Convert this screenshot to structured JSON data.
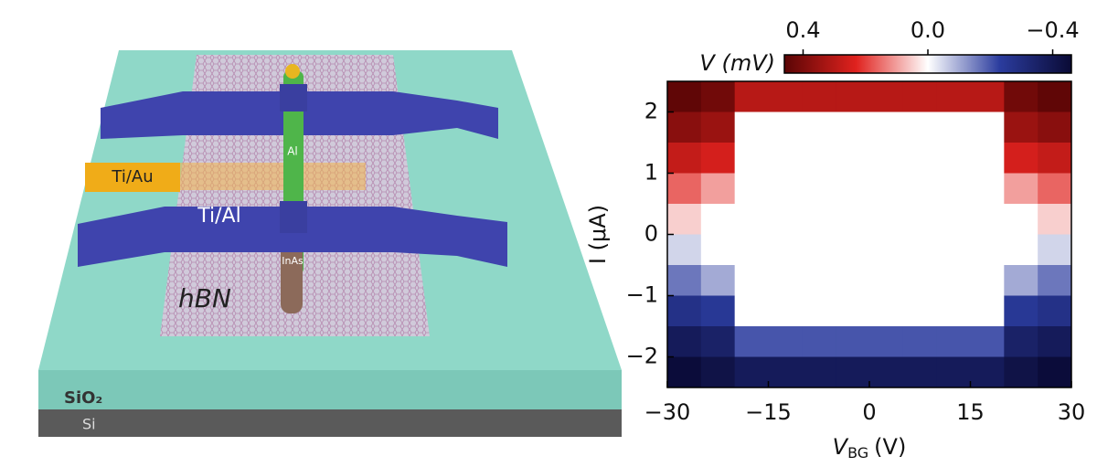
{
  "schematic": {
    "labels": {
      "ti_au": "Ti/Au",
      "ti_al": "Ti/Al",
      "al": "Al",
      "inas": "InAs",
      "hbn": "hBN",
      "sio2": "SiO₂",
      "si": "Si"
    }
  },
  "chart_data": {
    "type": "heatmap",
    "x_label": {
      "symbol": "V",
      "subscript": "BG",
      "unit": "(V)"
    },
    "y_label": "I (μA)",
    "colorbar_label": "V (mV)",
    "x_edges": [
      -30,
      -25,
      -20,
      -15,
      -10,
      -5,
      0,
      5,
      10,
      15,
      20,
      25,
      30
    ],
    "y_edges": [
      2.5,
      2,
      1.5,
      1,
      0.5,
      0,
      -0.5,
      -1,
      -1.5,
      -2,
      -2.5
    ],
    "values": [
      [
        0.45,
        0.42,
        0.3,
        0.3,
        0.3,
        0.3,
        0.3,
        0.3,
        0.3,
        0.3,
        0.42,
        0.45
      ],
      [
        0.38,
        0.35,
        0,
        0,
        0,
        0,
        0,
        0,
        0,
        0,
        0.35,
        0.38
      ],
      [
        0.28,
        0.25,
        0,
        0,
        0,
        0,
        0,
        0,
        0,
        0,
        0.25,
        0.28
      ],
      [
        0.16,
        0.1,
        0,
        0,
        0,
        0,
        0,
        0,
        0,
        0,
        0.1,
        0.16
      ],
      [
        0.05,
        0,
        0,
        0,
        0,
        0,
        0,
        0,
        0,
        0,
        0,
        0.05
      ],
      [
        -0.05,
        0,
        0,
        0,
        0,
        0,
        0,
        0,
        0,
        0,
        0,
        -0.05
      ],
      [
        -0.16,
        -0.1,
        0,
        0,
        0,
        0,
        0,
        0,
        0,
        0,
        -0.1,
        -0.16
      ],
      [
        -0.28,
        -0.25,
        0,
        0,
        0,
        0,
        0,
        0,
        0,
        0,
        -0.25,
        -0.28
      ],
      [
        -0.38,
        -0.35,
        -0.2,
        -0.2,
        -0.2,
        -0.2,
        -0.2,
        -0.2,
        -0.2,
        -0.2,
        -0.35,
        -0.38
      ],
      [
        -0.45,
        -0.42,
        -0.38,
        -0.38,
        -0.38,
        -0.38,
        -0.38,
        -0.38,
        -0.38,
        -0.38,
        -0.42,
        -0.45
      ]
    ],
    "xlim": [
      -30,
      30
    ],
    "ylim": [
      -2.5,
      2.5
    ],
    "xticks": [
      {
        "value": -30,
        "label": "−30"
      },
      {
        "value": -15,
        "label": "−15"
      },
      0,
      15,
      30
    ],
    "yticks": [
      {
        "value": -2,
        "label": "−2"
      },
      {
        "value": -1,
        "label": "−1"
      },
      0,
      1,
      2
    ],
    "clim": [
      0.46,
      -0.46
    ],
    "cticks": [
      0.4,
      {
        "value": 0,
        "label": "0.0"
      },
      {
        "value": -0.4,
        "label": "−0.4"
      }
    ],
    "colormap": [
      "#5a0505",
      "#e0221e",
      "#ffffff",
      "#2b3c9e",
      "#0a0a35"
    ]
  }
}
